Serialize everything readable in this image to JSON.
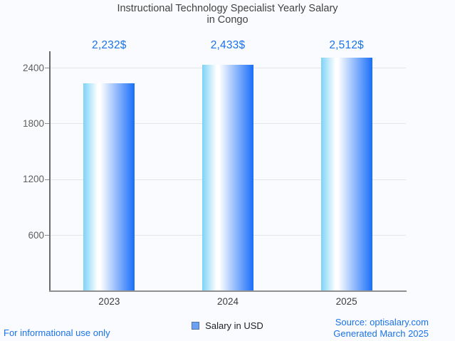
{
  "title": {
    "line1": "Instructional Technology Specialist Yearly Salary",
    "line2": "in Congo"
  },
  "chart_data": {
    "type": "bar",
    "title": "Instructional Technology Specialist Yearly Salary in Congo",
    "categories": [
      "2023",
      "2024",
      "2025"
    ],
    "values": [
      2232,
      2433,
      2512
    ],
    "value_labels": [
      "2,232$",
      "2,433$",
      "2,512$"
    ],
    "series": [
      {
        "name": "Salary in USD",
        "values": [
          2232,
          2433,
          2512
        ]
      }
    ],
    "xlabel": "",
    "ylabel": "",
    "y_ticks": [
      600,
      1200,
      1800,
      2400
    ],
    "ylim": [
      0,
      2580
    ],
    "grid": true,
    "legend_position": "bottom",
    "bar_gradient": [
      "#7dd2f8",
      "#ffffff",
      "#1a6ef9"
    ]
  },
  "legend": {
    "label": "Salary in USD",
    "swatch_fill": "#6ba1f5",
    "swatch_border": "#4f74a8"
  },
  "footer": {
    "left": "For informational use only",
    "source": "Source: optisalary.com",
    "generated": "Generated March 2025"
  },
  "colors": {
    "accent_blue": "#1a73e8",
    "title_text": "#424242",
    "y_axis_label": "#5f5f5f",
    "x_axis_label": "#3c3c3c",
    "gridline": "#e2e5e9",
    "axis_line": "#6b6b6b",
    "background": "#fafbfe"
  }
}
